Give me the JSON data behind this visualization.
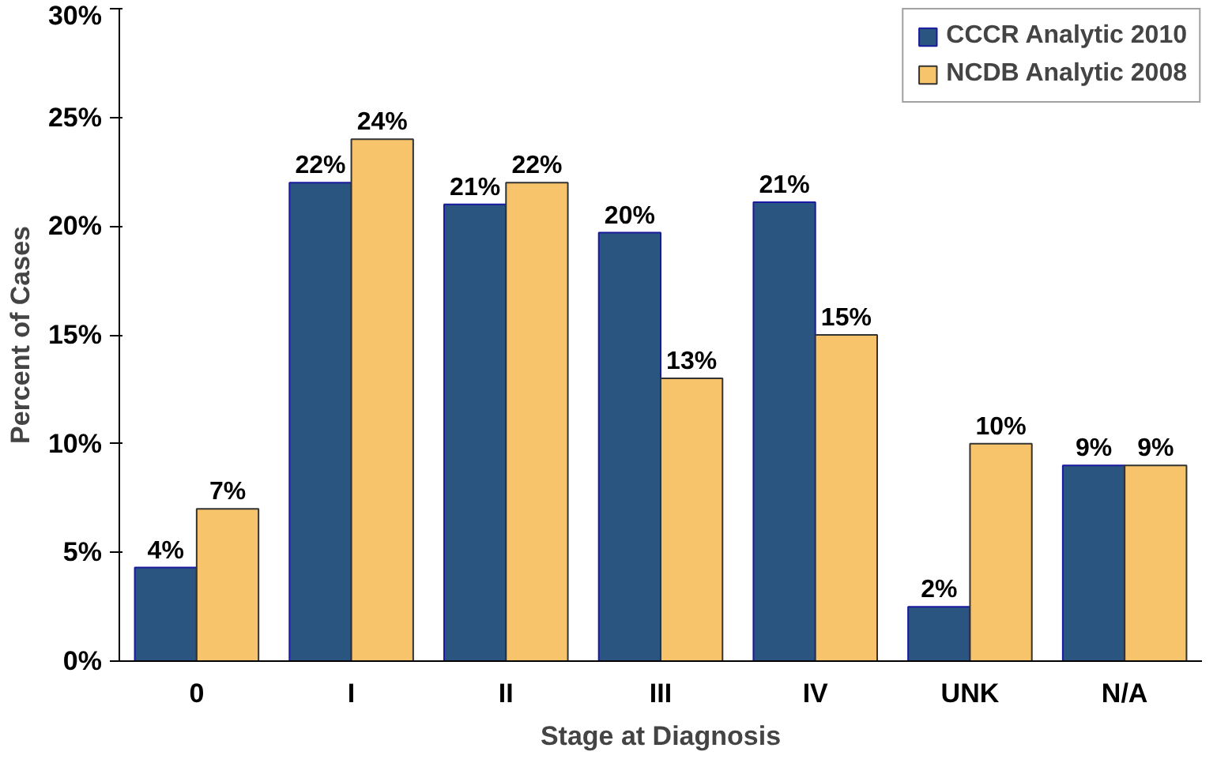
{
  "chart_data": {
    "type": "bar",
    "xlabel": "Stage at Diagnosis",
    "ylabel": "Percent of Cases",
    "categories": [
      "0",
      "I",
      "II",
      "III",
      "IV",
      "UNK",
      "N/A"
    ],
    "series": [
      {
        "name": "CCCR Analytic 2010",
        "color": "#2a5580",
        "values": [
          4.3,
          22,
          21,
          19.7,
          21.1,
          2.5,
          9
        ],
        "value_labels": [
          "4%",
          "22%",
          "21%",
          "20%",
          "21%",
          "2%",
          "9%"
        ]
      },
      {
        "name": "NCDB Analytic 2008",
        "color": "#f7c46c",
        "values": [
          7,
          24,
          22,
          13,
          15,
          10,
          9
        ],
        "value_labels": [
          "7%",
          "24%",
          "22%",
          "13%",
          "15%",
          "10%",
          "9%"
        ]
      }
    ],
    "ylim": [
      0,
      30
    ],
    "yticks": [
      {
        "value": 0,
        "label": "0%"
      },
      {
        "value": 5,
        "label": "5%"
      },
      {
        "value": 10,
        "label": "10%"
      },
      {
        "value": 15,
        "label": "15%"
      },
      {
        "value": 20,
        "label": "20%"
      },
      {
        "value": 25,
        "label": "25%"
      },
      {
        "value": 30,
        "label": "30%"
      }
    ],
    "grid": false,
    "legend": "top right"
  }
}
